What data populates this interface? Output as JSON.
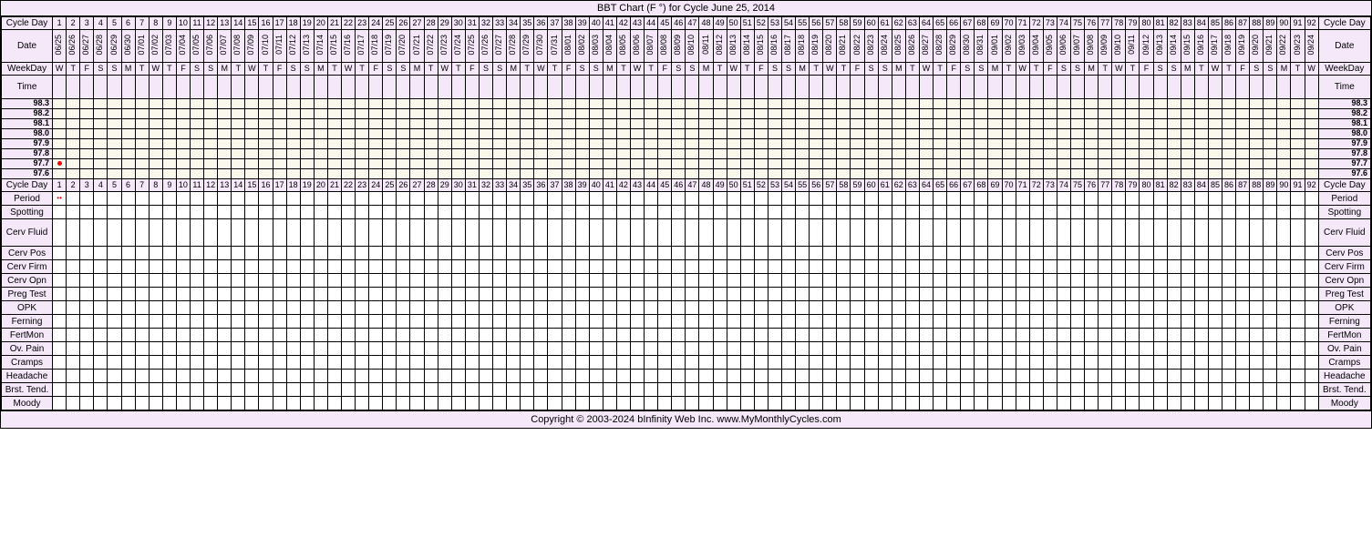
{
  "title": "BBT Chart (F °) for Cycle June 25, 2014",
  "num_days": 92,
  "label_col_width": 56,
  "day_col_width": 15.1,
  "colors": {
    "header_bg": "#f4e8f9",
    "temp_bg": "#faf8ed",
    "data_bg": "#ffffff",
    "border": "#000000",
    "dot": "#ff0000"
  },
  "header_labels": {
    "cycle_day": "Cycle Day",
    "date": "Date",
    "weekday": "WeekDay",
    "time": "Time"
  },
  "start_date": "2014-06-25",
  "dates": [
    "06/25",
    "06/26",
    "06/27",
    "06/28",
    "06/29",
    "06/30",
    "07/01",
    "07/02",
    "07/03",
    "07/04",
    "07/05",
    "07/06",
    "07/07",
    "07/08",
    "07/09",
    "07/10",
    "07/11",
    "07/12",
    "07/13",
    "07/14",
    "07/15",
    "07/16",
    "07/17",
    "07/18",
    "07/19",
    "07/20",
    "07/21",
    "07/22",
    "07/23",
    "07/24",
    "07/25",
    "07/26",
    "07/27",
    "07/28",
    "07/29",
    "07/30",
    "07/31",
    "08/01",
    "08/02",
    "08/03",
    "08/04",
    "08/05",
    "08/06",
    "08/07",
    "08/08",
    "08/09",
    "08/10",
    "08/11",
    "08/12",
    "08/13",
    "08/14",
    "08/15",
    "08/16",
    "08/17",
    "08/18",
    "08/19",
    "08/20",
    "08/21",
    "08/22",
    "08/23",
    "08/24",
    "08/25",
    "08/26",
    "08/27",
    "08/28",
    "08/29",
    "08/30",
    "08/31",
    "09/01",
    "09/02",
    "09/03",
    "09/04",
    "09/05",
    "09/06",
    "09/07",
    "09/08",
    "09/09",
    "09/10",
    "09/11",
    "09/12",
    "09/13",
    "09/14",
    "09/15",
    "09/16",
    "09/17",
    "09/18",
    "09/19",
    "09/20",
    "09/21",
    "09/22",
    "09/23",
    "09/24"
  ],
  "weekdays": [
    "W",
    "T",
    "F",
    "S",
    "S",
    "M",
    "T",
    "W",
    "T",
    "F",
    "S",
    "S",
    "M",
    "T",
    "W",
    "T",
    "F",
    "S",
    "S",
    "M",
    "T",
    "W",
    "T",
    "F",
    "S",
    "S",
    "M",
    "T",
    "W",
    "T",
    "F",
    "S",
    "S",
    "M",
    "T",
    "W",
    "T",
    "F",
    "S",
    "S",
    "M",
    "T",
    "W",
    "T",
    "F",
    "S",
    "S",
    "M",
    "T",
    "W",
    "T",
    "F",
    "S",
    "S",
    "M",
    "T",
    "W",
    "T",
    "F",
    "S",
    "S",
    "M",
    "T",
    "W",
    "T",
    "F",
    "S",
    "S",
    "M",
    "T",
    "W",
    "T",
    "F",
    "S",
    "S",
    "M",
    "T",
    "W",
    "T",
    "F",
    "S",
    "S",
    "M",
    "T",
    "W",
    "T",
    "F",
    "S",
    "S",
    "M",
    "T",
    "W"
  ],
  "temp_rows": [
    "98.3",
    "98.2",
    "98.1",
    "98.0",
    "97.9",
    "97.8",
    "97.7",
    "97.6"
  ],
  "temp_point": {
    "day": 1,
    "temp": "97.7"
  },
  "data_rows": [
    {
      "label": "Period",
      "tall": false,
      "marks": {
        "1": "period"
      }
    },
    {
      "label": "Spotting",
      "tall": false
    },
    {
      "label": "Cerv Fluid",
      "tall": true
    },
    {
      "label": "Cerv Pos",
      "tall": false
    },
    {
      "label": "Cerv Firm",
      "tall": false
    },
    {
      "label": "Cerv Opn",
      "tall": false
    },
    {
      "label": "Preg Test",
      "tall": false
    },
    {
      "label": "OPK",
      "tall": false
    },
    {
      "label": "Ferning",
      "tall": false
    },
    {
      "label": "FertMon",
      "tall": false
    },
    {
      "label": "Ov. Pain",
      "tall": false
    },
    {
      "label": "Cramps",
      "tall": false
    },
    {
      "label": "Headache",
      "tall": false
    },
    {
      "label": "Brst. Tend.",
      "tall": false
    },
    {
      "label": "Moody",
      "tall": false
    }
  ],
  "footer": "Copyright © 2003-2024 bInfinity Web Inc.    www.MyMonthlyCycles.com"
}
